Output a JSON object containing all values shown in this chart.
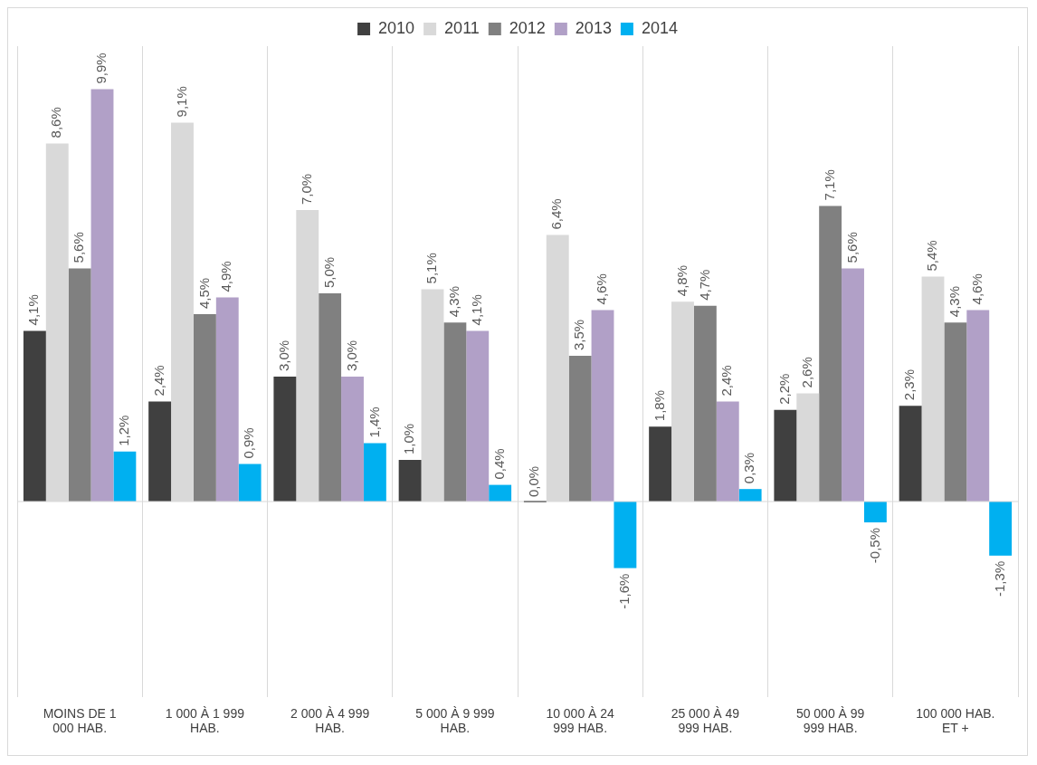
{
  "chart_data": {
    "type": "bar",
    "categories": [
      "MOINS DE 1 000 HAB.",
      "1 000 À 1 999 HAB.",
      "2 000 À 4 999 HAB.",
      "5 000 À 9 999 HAB.",
      "10 000 À 24 999 HAB.",
      "25 000 À 49 999 HAB.",
      "50 000 À 99 999 HAB.",
      "100 000 HAB. ET +"
    ],
    "series": [
      {
        "name": "2010",
        "color": "#404040",
        "values": [
          4.1,
          2.4,
          3.0,
          1.0,
          0.0,
          1.8,
          2.2,
          2.3
        ],
        "value_labels": [
          "4,1%",
          "2,4%",
          "3,0%",
          "1,0%",
          "0,0%",
          "1,8%",
          "2,2%",
          "2,3%"
        ]
      },
      {
        "name": "2011",
        "color": "#d9d9d9",
        "values": [
          8.6,
          9.1,
          7.0,
          5.1,
          6.4,
          4.8,
          2.6,
          5.4
        ],
        "value_labels": [
          "8,6%",
          "9,1%",
          "7,0%",
          "5,1%",
          "6,4%",
          "4,8%",
          "2,6%",
          "5,4%"
        ]
      },
      {
        "name": "2012",
        "color": "#808080",
        "values": [
          5.6,
          4.5,
          5.0,
          4.3,
          3.5,
          4.7,
          7.1,
          4.3
        ],
        "value_labels": [
          "5,6%",
          "4,5%",
          "5,0%",
          "4,3%",
          "3,5%",
          "4,7%",
          "7,1%",
          "4,3%"
        ]
      },
      {
        "name": "2013",
        "color": "#b1a0c7",
        "values": [
          9.9,
          4.9,
          3.0,
          4.1,
          4.6,
          2.4,
          5.6,
          4.6
        ],
        "value_labels": [
          "9,9%",
          "4,9%",
          "3,0%",
          "4,1%",
          "4,6%",
          "2,4%",
          "5,6%",
          "4,6%"
        ]
      },
      {
        "name": "2014",
        "color": "#00b0f0",
        "values": [
          1.2,
          0.9,
          1.4,
          0.4,
          -1.6,
          0.3,
          -0.5,
          -1.3
        ],
        "value_labels": [
          "1,2%",
          "0,9%",
          "1,4%",
          "0,4%",
          "-1,6%",
          "0,3%",
          "-0,5%",
          "-1,3%"
        ]
      }
    ],
    "grid": "x",
    "legend": "top"
  }
}
